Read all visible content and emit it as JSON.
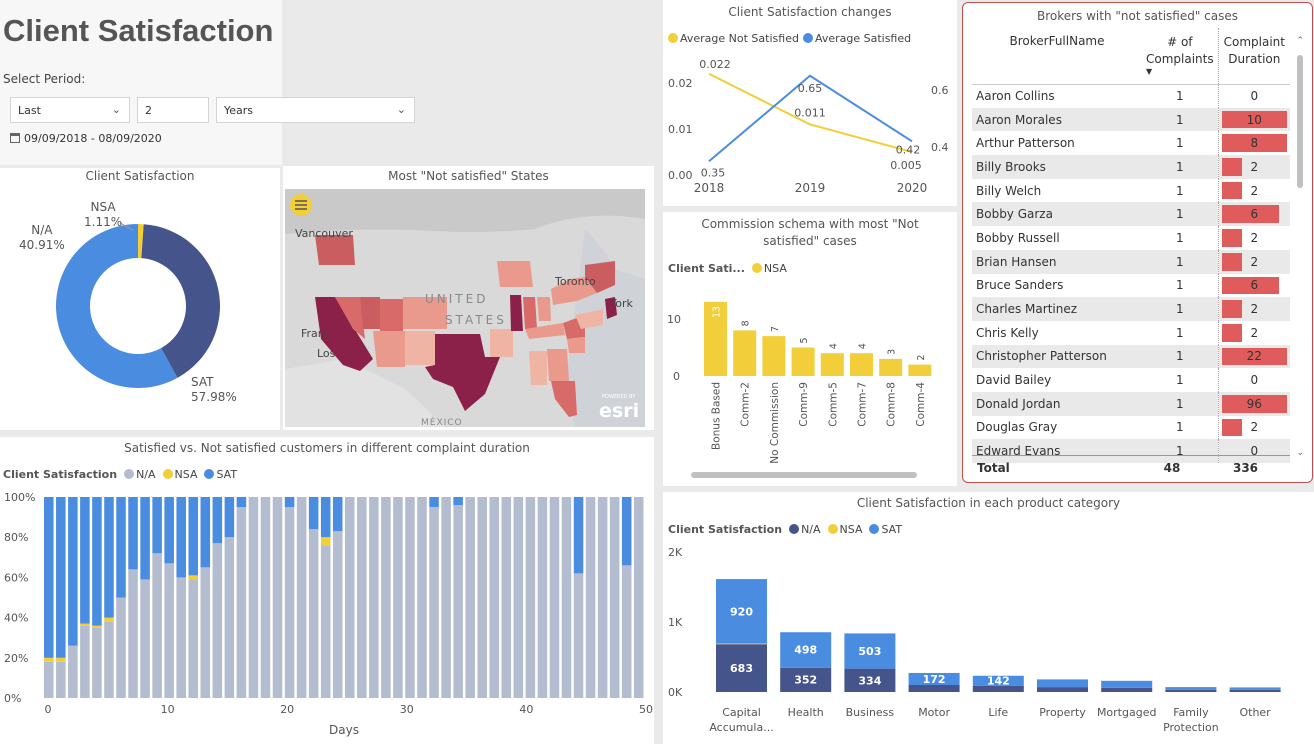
{
  "page": {
    "title": "Client Satisfaction",
    "period_label": "Select Period:",
    "period_mode": "Last",
    "period_count": "2",
    "period_unit": "Years",
    "date_range": "09/09/2018 - 08/09/2020"
  },
  "colors": {
    "na": "#45558c",
    "na_light": "#b4bcd0",
    "nsa": "#f2cf3a",
    "sat": "#4a8de0",
    "bar_red": "#e05c5c",
    "table_border": "#c0504d"
  },
  "donut": {
    "title": "Client Satisfaction",
    "label_nsa": "NSA",
    "pct_nsa": "1.11%",
    "label_na": "N/A",
    "pct_na": "40.91%",
    "label_sat": "SAT",
    "pct_sat": "57.98%"
  },
  "map": {
    "title": "Most \"Not satisfied\" States",
    "labels": [
      "Vancouver",
      "UNITED",
      "STATES",
      "Toronto",
      "York",
      "Franc",
      "Los",
      "MÉXICO"
    ],
    "brand_small": "POWERED BY",
    "brand": "esri"
  },
  "stacked": {
    "title": "Satisfied vs. Not satisfied customers in different complaint duration",
    "legend_title": "Client Satisfaction",
    "legend": [
      "N/A",
      "NSA",
      "SAT"
    ],
    "xlabel": "Days",
    "yticks": [
      "100%",
      "80%",
      "60%",
      "40%",
      "20%",
      "0%"
    ],
    "xticks": [
      "0",
      "10",
      "20",
      "30",
      "40",
      "50"
    ]
  },
  "line": {
    "title": "Client Satisfaction changes",
    "legend": [
      "Average Not Satisfied",
      "Average Satisfied"
    ],
    "yleft": [
      "0.02",
      "0.01",
      "0.00"
    ],
    "yright": [
      "0.6",
      "0.4"
    ],
    "labels_nsa": [
      "0.022",
      "0.011",
      "0.005"
    ],
    "labels_sat": [
      "0.35",
      "0.65",
      "0.42"
    ]
  },
  "commission": {
    "title": "Commission schema with most \"Not satisfied\" cases",
    "legend_title": "Client Sati...",
    "legend": [
      "NSA"
    ],
    "yticks": [
      "10",
      "0"
    ]
  },
  "brokers": {
    "title": "Brokers with \"not satisfied\" cases",
    "col_name": "BrokerFullName",
    "col_count_1": "# of",
    "col_count_2": "Complaints",
    "col_dur_1": "Complaint",
    "col_dur_2": "Duration",
    "rows": [
      {
        "name": "Aaron Collins",
        "count": "1",
        "dur": "0"
      },
      {
        "name": "Aaron Morales",
        "count": "1",
        "dur": "10"
      },
      {
        "name": "Arthur Patterson",
        "count": "1",
        "dur": "8"
      },
      {
        "name": "Billy Brooks",
        "count": "1",
        "dur": "2"
      },
      {
        "name": "Billy Welch",
        "count": "1",
        "dur": "2"
      },
      {
        "name": "Bobby Garza",
        "count": "1",
        "dur": "6"
      },
      {
        "name": "Bobby Russell",
        "count": "1",
        "dur": "2"
      },
      {
        "name": "Brian Hansen",
        "count": "1",
        "dur": "2"
      },
      {
        "name": "Bruce Sanders",
        "count": "1",
        "dur": "6"
      },
      {
        "name": "Charles Martinez",
        "count": "1",
        "dur": "2"
      },
      {
        "name": "Chris Kelly",
        "count": "1",
        "dur": "2"
      },
      {
        "name": "Christopher Patterson",
        "count": "1",
        "dur": "22"
      },
      {
        "name": "David Bailey",
        "count": "1",
        "dur": "0"
      },
      {
        "name": "Donald Jordan",
        "count": "1",
        "dur": "96"
      },
      {
        "name": "Douglas Gray",
        "count": "1",
        "dur": "2"
      },
      {
        "name": "Edward Evans",
        "count": "1",
        "dur": "0"
      }
    ],
    "total_label": "Total",
    "total_count": "48",
    "total_dur": "336"
  },
  "category": {
    "title": "Client Satisfaction in each product category",
    "legend_title": "Client Satisfaction",
    "legend": [
      "N/A",
      "NSA",
      "SAT"
    ],
    "yticks": [
      "2K",
      "1K",
      "0K"
    ]
  },
  "chart_data": [
    {
      "type": "pie",
      "title": "Client Satisfaction",
      "categories": [
        "NSA",
        "N/A",
        "SAT"
      ],
      "values": [
        1.11,
        40.91,
        57.98
      ]
    },
    {
      "type": "line",
      "title": "Client Satisfaction changes",
      "x": [
        2018,
        2019,
        2020
      ],
      "series": [
        {
          "name": "Average Not Satisfied",
          "axis": "left",
          "values": [
            0.022,
            0.011,
            0.005
          ]
        },
        {
          "name": "Average Satisfied",
          "axis": "right",
          "values": [
            0.35,
            0.65,
            0.42
          ]
        }
      ],
      "ylim_left": [
        0,
        0.025
      ],
      "ylim_right": [
        0.3,
        0.7
      ]
    },
    {
      "type": "bar",
      "title": "Commission schema with most \"Not satisfied\" cases",
      "categories": [
        "Bonus Based",
        "Comm-2",
        "No Commission",
        "Comm-9",
        "Comm-5",
        "Comm-7",
        "Comm-8",
        "Comm-4"
      ],
      "series": [
        {
          "name": "NSA",
          "values": [
            13,
            8,
            7,
            5,
            4,
            4,
            3,
            2
          ]
        }
      ],
      "ylim": [
        0,
        14
      ]
    },
    {
      "type": "bar",
      "title": "Client Satisfaction in each product category",
      "stacked": true,
      "categories": [
        "Capital Accumula...",
        "Health",
        "Business",
        "Motor",
        "Life",
        "Property",
        "Mortgaged",
        "Family Protection",
        "Other"
      ],
      "series": [
        {
          "name": "N/A",
          "values": [
            683,
            352,
            334,
            100,
            90,
            70,
            60,
            30,
            30
          ]
        },
        {
          "name": "NSA",
          "values": [
            10,
            4,
            0,
            0,
            0,
            0,
            0,
            0,
            0
          ]
        },
        {
          "name": "SAT",
          "values": [
            920,
            498,
            503,
            172,
            142,
            110,
            100,
            40,
            35
          ]
        }
      ],
      "ylim": [
        0,
        2000
      ]
    },
    {
      "type": "bar",
      "title": "Satisfied vs. Not satisfied customers in different complaint duration",
      "stacked": true,
      "percent": true,
      "x": [
        0,
        1,
        2,
        3,
        4,
        5,
        6,
        7,
        8,
        9,
        10,
        11,
        12,
        13,
        14,
        15,
        16,
        17,
        18,
        19,
        20,
        21,
        22,
        23,
        24,
        25,
        26,
        27,
        28,
        29,
        30,
        31,
        32,
        33,
        34,
        35,
        36,
        37,
        38,
        39,
        40,
        41,
        42,
        43,
        44,
        45,
        46,
        47,
        48,
        49
      ],
      "series": [
        {
          "name": "N/A",
          "values": [
            18,
            18,
            26,
            36,
            35,
            38,
            50,
            64,
            59,
            72,
            67,
            60,
            59,
            65,
            77,
            80,
            95,
            100,
            100,
            100,
            95,
            100,
            84,
            76,
            83,
            100,
            100,
            100,
            100,
            100,
            100,
            100,
            95,
            100,
            96,
            100,
            100,
            100,
            100,
            100,
            100,
            100,
            100,
            100,
            62,
            100,
            100,
            100,
            66,
            100
          ]
        },
        {
          "name": "NSA",
          "values": [
            2,
            2,
            0,
            1,
            1,
            2,
            0,
            0,
            0,
            0,
            0,
            0,
            2,
            0,
            0,
            0,
            0,
            0,
            0,
            0,
            0,
            0,
            0,
            4,
            0,
            0,
            0,
            0,
            0,
            0,
            0,
            0,
            0,
            0,
            0,
            0,
            0,
            0,
            0,
            0,
            0,
            0,
            0,
            0,
            0,
            0,
            0,
            0,
            0,
            0
          ]
        },
        {
          "name": "SAT",
          "values": [
            80,
            80,
            74,
            63,
            64,
            60,
            50,
            36,
            41,
            28,
            33,
            40,
            39,
            35,
            23,
            20,
            5,
            0,
            0,
            0,
            5,
            0,
            16,
            20,
            17,
            0,
            0,
            0,
            0,
            0,
            0,
            0,
            5,
            0,
            4,
            0,
            0,
            0,
            0,
            0,
            0,
            0,
            0,
            0,
            38,
            0,
            0,
            0,
            34,
            0
          ]
        }
      ],
      "xlabel": "Days",
      "ylim": [
        0,
        100
      ]
    }
  ]
}
